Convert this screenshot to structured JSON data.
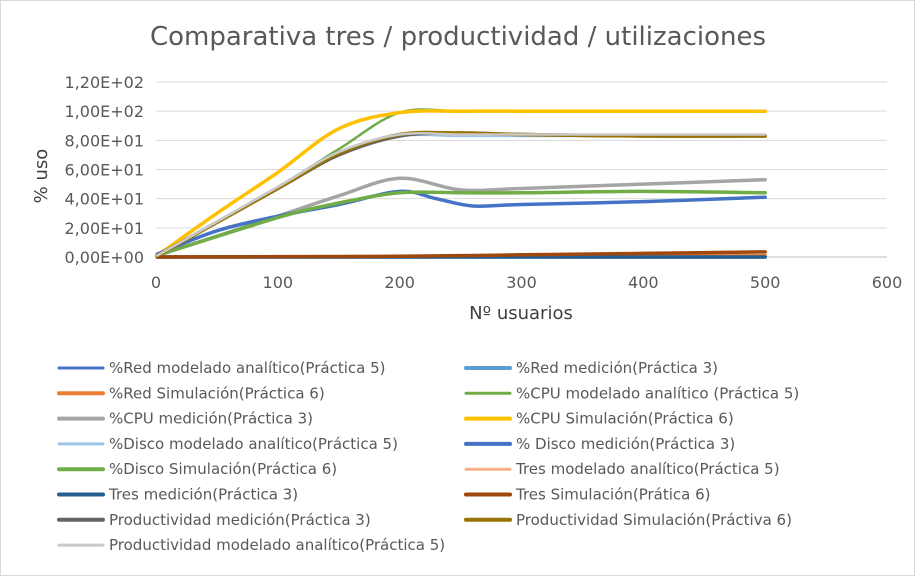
{
  "chart_data": {
    "type": "line",
    "title": "Comparativa tres / productividad / utilizaciones",
    "xlabel": "Nº usuarios",
    "ylabel": "% uso",
    "xlim": [
      0,
      600
    ],
    "ylim": [
      0,
      120
    ],
    "x_ticks": [
      0,
      100,
      200,
      300,
      400,
      500,
      600
    ],
    "x_tick_labels": [
      "0",
      "100",
      "200",
      "300",
      "400",
      "500",
      "600"
    ],
    "y_ticks": [
      0,
      20,
      40,
      60,
      80,
      100,
      120
    ],
    "y_tick_labels": [
      "0,00E+00",
      "2,00E+01",
      "4,00E+01",
      "6,00E+01",
      "8,00E+01",
      "1,00E+02",
      "1,20E+02"
    ],
    "grid": "horizontal",
    "legend_position": "bottom",
    "series": [
      {
        "name": "%Red modelado analítico(Práctica 5)",
        "color": "#4472c4",
        "width": 2.5,
        "x": [
          1,
          500
        ],
        "y": [
          0,
          0
        ]
      },
      {
        "name": "%Red medición(Práctica 3)",
        "color": "#5b9bd5",
        "width": 3.5,
        "x": [
          1,
          500
        ],
        "y": [
          0,
          0
        ]
      },
      {
        "name": "%Red Simulación(Práctica 6)",
        "color": "#ed7d31",
        "width": 3.5,
        "x": [
          1,
          300,
          500
        ],
        "y": [
          0,
          0.3,
          0.8
        ]
      },
      {
        "name": "%CPU modelado analítico (Práctica 5)",
        "color": "#70ad47",
        "width": 2.5,
        "x": [
          1,
          100,
          150,
          200,
          250,
          300,
          400,
          500
        ],
        "y": [
          1,
          48,
          74,
          99,
          100,
          100,
          100,
          100
        ]
      },
      {
        "name": "%CPU medición(Práctica 3)",
        "color": "#a5a5a5",
        "width": 3.5,
        "x": [
          1,
          100,
          150,
          200,
          250,
          300,
          400,
          500
        ],
        "y": [
          1,
          28,
          42,
          54,
          46,
          47,
          50,
          53
        ]
      },
      {
        "name": "%CPU Simulación(Práctica 6)",
        "color": "#ffc000",
        "width": 3.5,
        "x": [
          1,
          50,
          100,
          150,
          200,
          250,
          300,
          400,
          500
        ],
        "y": [
          1,
          30,
          58,
          88,
          99,
          100,
          100,
          100,
          100
        ]
      },
      {
        "name": "%Disco modelado analítico(Práctica 5)",
        "color": "#9dc3e6",
        "width": 2.5,
        "x": [
          1,
          100,
          150,
          200,
          250,
          300,
          400,
          500
        ],
        "y": [
          1,
          48,
          72,
          83,
          83,
          83,
          83,
          83
        ]
      },
      {
        "name": "% Disco medición(Práctica 3)",
        "color": "#4472c4",
        "width": 3.5,
        "x": [
          1,
          50,
          100,
          150,
          200,
          230,
          260,
          300,
          400,
          500
        ],
        "y": [
          2,
          18,
          28,
          36,
          45,
          40,
          35,
          36,
          38,
          41
        ]
      },
      {
        "name": "%Disco Simulación(Práctica 6)",
        "color": "#70ad47",
        "width": 3.5,
        "x": [
          1,
          100,
          150,
          200,
          250,
          300,
          400,
          500
        ],
        "y": [
          1,
          27,
          37,
          44,
          44,
          44,
          45,
          44
        ]
      },
      {
        "name": "Tres modelado analítico(Práctica 5)",
        "color": "#f4b183",
        "width": 2.5,
        "x": [
          1,
          500
        ],
        "y": [
          0,
          0
        ]
      },
      {
        "name": "Tres medición(Práctica 3)",
        "color": "#255e91",
        "width": 3.5,
        "x": [
          1,
          500
        ],
        "y": [
          0,
          0
        ]
      },
      {
        "name": "Tres Simulación(Prática 6)",
        "color": "#9e480e",
        "width": 3.5,
        "x": [
          1,
          200,
          300,
          400,
          500
        ],
        "y": [
          0,
          0.5,
          1.5,
          2.5,
          3.5
        ]
      },
      {
        "name": "Productividad medición(Práctica 3)",
        "color": "#636363",
        "width": 3.5,
        "x": [
          1,
          100,
          150,
          200,
          250,
          300,
          400,
          500
        ],
        "y": [
          1,
          47,
          70,
          83,
          85,
          84,
          83,
          83
        ]
      },
      {
        "name": "Productividad Simulación(Práctiva 6)",
        "color": "#997300",
        "width": 3.5,
        "x": [
          1,
          100,
          150,
          200,
          250,
          300,
          400,
          500
        ],
        "y": [
          1,
          47,
          71,
          84,
          85,
          84,
          83,
          83
        ]
      },
      {
        "name": "Productividad modelado analítico(Práctica 5)",
        "color": "#c9c9c9",
        "width": 2.5,
        "x": [
          1,
          100,
          150,
          200,
          250,
          300,
          400,
          500
        ],
        "y": [
          1,
          48,
          72,
          84,
          84,
          84,
          84,
          84
        ]
      }
    ]
  }
}
